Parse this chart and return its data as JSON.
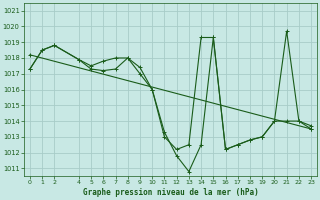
{
  "title": "Graphe pression niveau de la mer (hPa)",
  "bg_color": "#c8e8e4",
  "grid_color": "#a8ccc8",
  "line_color": "#1a5c1a",
  "xlim": [
    -0.5,
    23.5
  ],
  "ylim": [
    1010.5,
    1021.5
  ],
  "yticks": [
    1011,
    1012,
    1013,
    1014,
    1015,
    1016,
    1017,
    1018,
    1019,
    1020,
    1021
  ],
  "xtick_vals": [
    0,
    1,
    2,
    4,
    5,
    6,
    7,
    8,
    9,
    10,
    11,
    12,
    13,
    14,
    15,
    16,
    17,
    18,
    19,
    20,
    21,
    22,
    23
  ],
  "series": [
    {
      "x": [
        0,
        1,
        2,
        4,
        5,
        6,
        7,
        8,
        9,
        10,
        11,
        12,
        13,
        14,
        15,
        16,
        17,
        18,
        19,
        20,
        21,
        22,
        23
      ],
      "y": [
        1017.3,
        1018.5,
        1018.8,
        1017.9,
        1017.5,
        1017.8,
        1018.0,
        1018.0,
        1017.4,
        1016.0,
        1013.3,
        1011.8,
        1010.8,
        1012.5,
        1019.3,
        1012.2,
        1012.5,
        1012.8,
        1013.0,
        1014.0,
        1019.7,
        1014.0,
        1013.7
      ]
    },
    {
      "x": [
        0,
        1,
        2,
        4,
        5,
        6,
        7,
        8,
        9,
        10,
        11,
        12,
        13,
        14,
        15,
        16,
        17,
        18,
        19,
        20,
        21,
        22,
        23
      ],
      "y": [
        1017.3,
        1018.5,
        1018.8,
        1017.9,
        1017.3,
        1017.2,
        1017.3,
        1018.0,
        1017.0,
        1016.0,
        1013.0,
        1012.2,
        1012.5,
        1019.3,
        1019.3,
        1012.2,
        1012.5,
        1012.8,
        1013.0,
        1014.0,
        1014.0,
        1014.0,
        1013.5
      ]
    },
    {
      "x": [
        0,
        23
      ],
      "y": [
        1018.2,
        1013.5
      ]
    }
  ]
}
